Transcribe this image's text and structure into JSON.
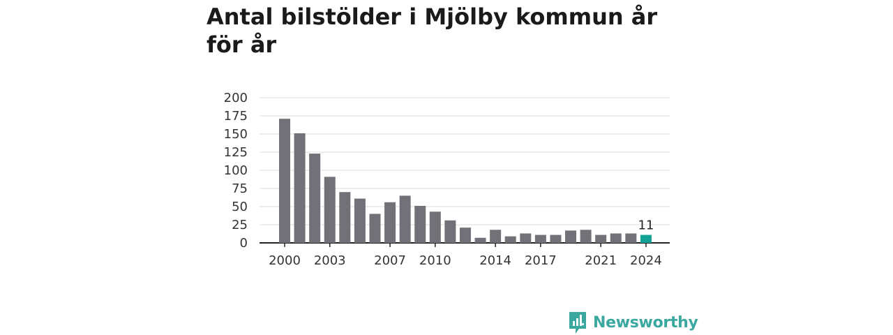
{
  "title": "Antal bilstölder i Mjölby kommun år för år",
  "brand": {
    "name": "Newsworthy"
  },
  "colors": {
    "bar": "#727177",
    "highlight": "#13a396",
    "grid": "#dddddd",
    "axis": "#222222",
    "brand": "#3aa89e"
  },
  "icons": {
    "brand": "newsworthy-logo-icon"
  },
  "chart_data": {
    "type": "bar",
    "x": [
      2000,
      2001,
      2002,
      2003,
      2004,
      2005,
      2006,
      2007,
      2008,
      2009,
      2010,
      2011,
      2012,
      2013,
      2014,
      2015,
      2016,
      2017,
      2018,
      2019,
      2020,
      2021,
      2022,
      2023,
      2024
    ],
    "values": [
      171,
      151,
      123,
      91,
      70,
      61,
      40,
      56,
      65,
      51,
      43,
      31,
      21,
      7,
      18,
      9,
      13,
      11,
      11,
      17,
      18,
      11,
      13,
      13,
      11
    ],
    "x_tick_labels": [
      "2000",
      "2003",
      "2007",
      "2010",
      "2014",
      "2017",
      "2021",
      "2024"
    ],
    "x_ticks": [
      2000,
      2003,
      2007,
      2010,
      2014,
      2017,
      2021,
      2024
    ],
    "y_ticks": [
      0,
      25,
      50,
      75,
      100,
      125,
      150,
      175,
      200
    ],
    "ylim": [
      0,
      200
    ],
    "highlight": {
      "x": 2024,
      "label": "11"
    },
    "grid": true,
    "legend": "none"
  }
}
